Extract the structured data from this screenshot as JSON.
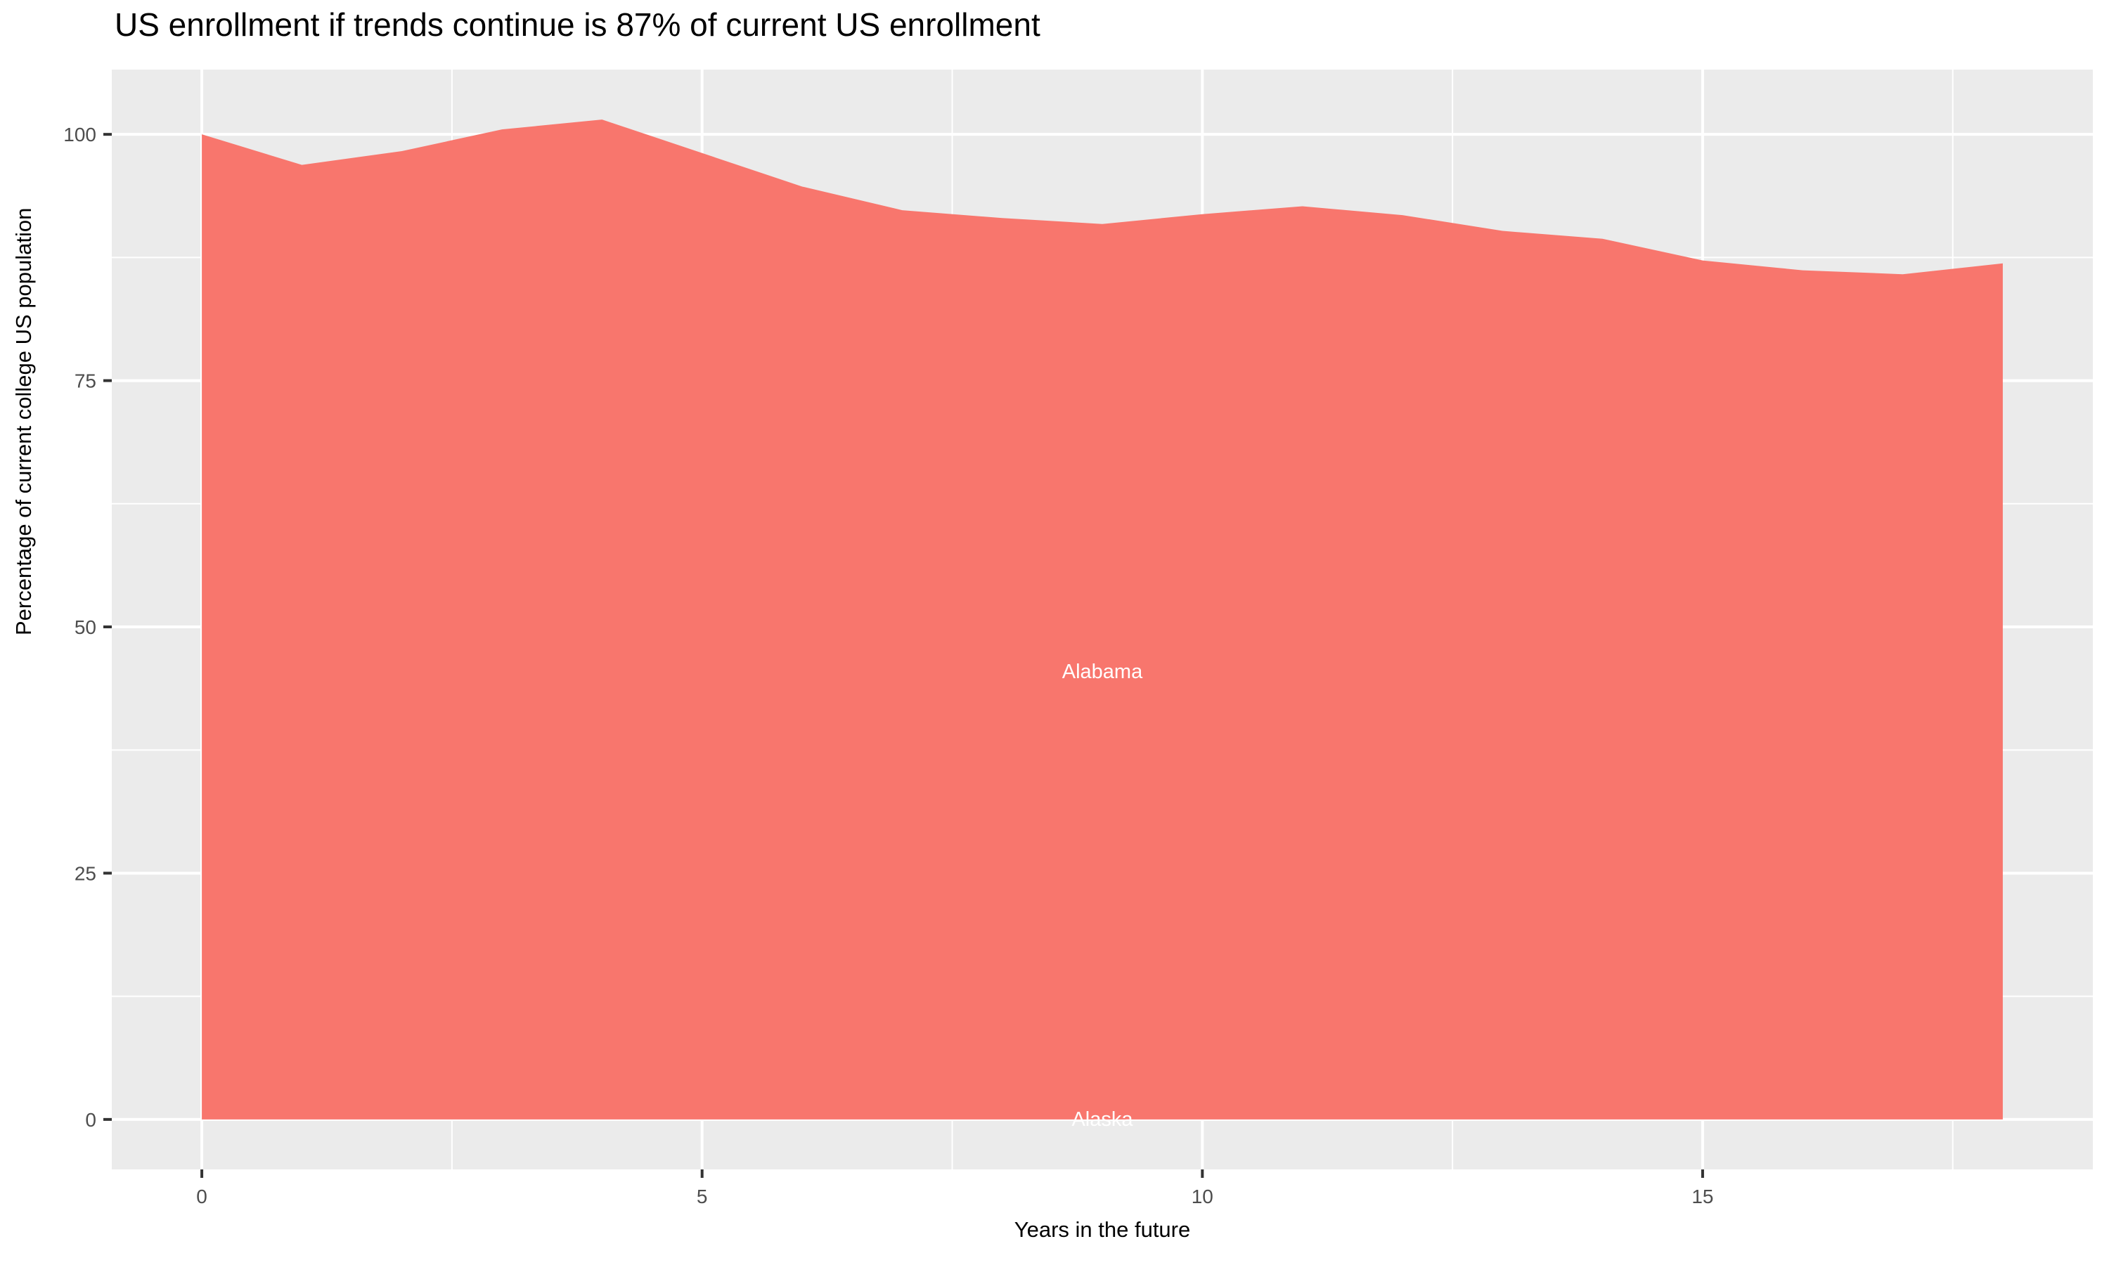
{
  "title": "US enrollment if trends continue is 87% of current US enrollment",
  "chart_data": {
    "type": "area",
    "stacked": true,
    "title": "US enrollment if trends continue is 87% of current US enrollment",
    "xlabel": "Years in the future",
    "ylabel": "Percentage of current college US population",
    "x": [
      0,
      1,
      2,
      3,
      4,
      5,
      6,
      7,
      8,
      9,
      10,
      11,
      12,
      13,
      14,
      15,
      16,
      17,
      18
    ],
    "series": [
      {
        "name": "Alabama",
        "values": [
          99.9,
          96.8,
          98.2,
          100.4,
          101.4,
          98.0,
          94.6,
          92.2,
          91.4,
          90.8,
          91.8,
          92.6,
          91.7,
          90.1,
          89.3,
          87.1,
          86.1,
          85.7,
          86.8
        ]
      },
      {
        "name": "Alaska",
        "values": [
          0.1,
          0.1,
          0.1,
          0.1,
          0.1,
          0.1,
          0.1,
          0.1,
          0.1,
          0.1,
          0.1,
          0.1,
          0.1,
          0.1,
          0.1,
          0.1,
          0.1,
          0.1,
          0.1
        ]
      }
    ],
    "annotations": [
      {
        "text": "Alabama",
        "x": 9,
        "y": 45.5
      },
      {
        "text": "Alaska",
        "x": 9,
        "y": 0.05
      }
    ],
    "x_ticks": [
      0,
      5,
      10,
      15
    ],
    "x_tick_labels": [
      "0",
      "5",
      "10",
      "15"
    ],
    "x_minor_ticks": [
      2.5,
      7.5,
      12.5,
      17.5
    ],
    "y_ticks": [
      0,
      25,
      50,
      75,
      100
    ],
    "y_tick_labels": [
      "0",
      "25",
      "50",
      "75",
      "100"
    ],
    "y_minor_ticks": [
      12.5,
      37.5,
      62.5,
      87.5
    ],
    "xlim": [
      0,
      18
    ],
    "ylim": [
      0,
      101.5
    ],
    "grid": "on",
    "legend_position": "none",
    "colors": {
      "area_fill": "#F8766D",
      "panel_background": "#EBEBEB",
      "gridline": "#FFFFFF",
      "tick_label_text": "#4D4D4D",
      "tick_mark": "#333333",
      "title_text": "#000000",
      "annotation_text": "#FFFFFF"
    }
  }
}
